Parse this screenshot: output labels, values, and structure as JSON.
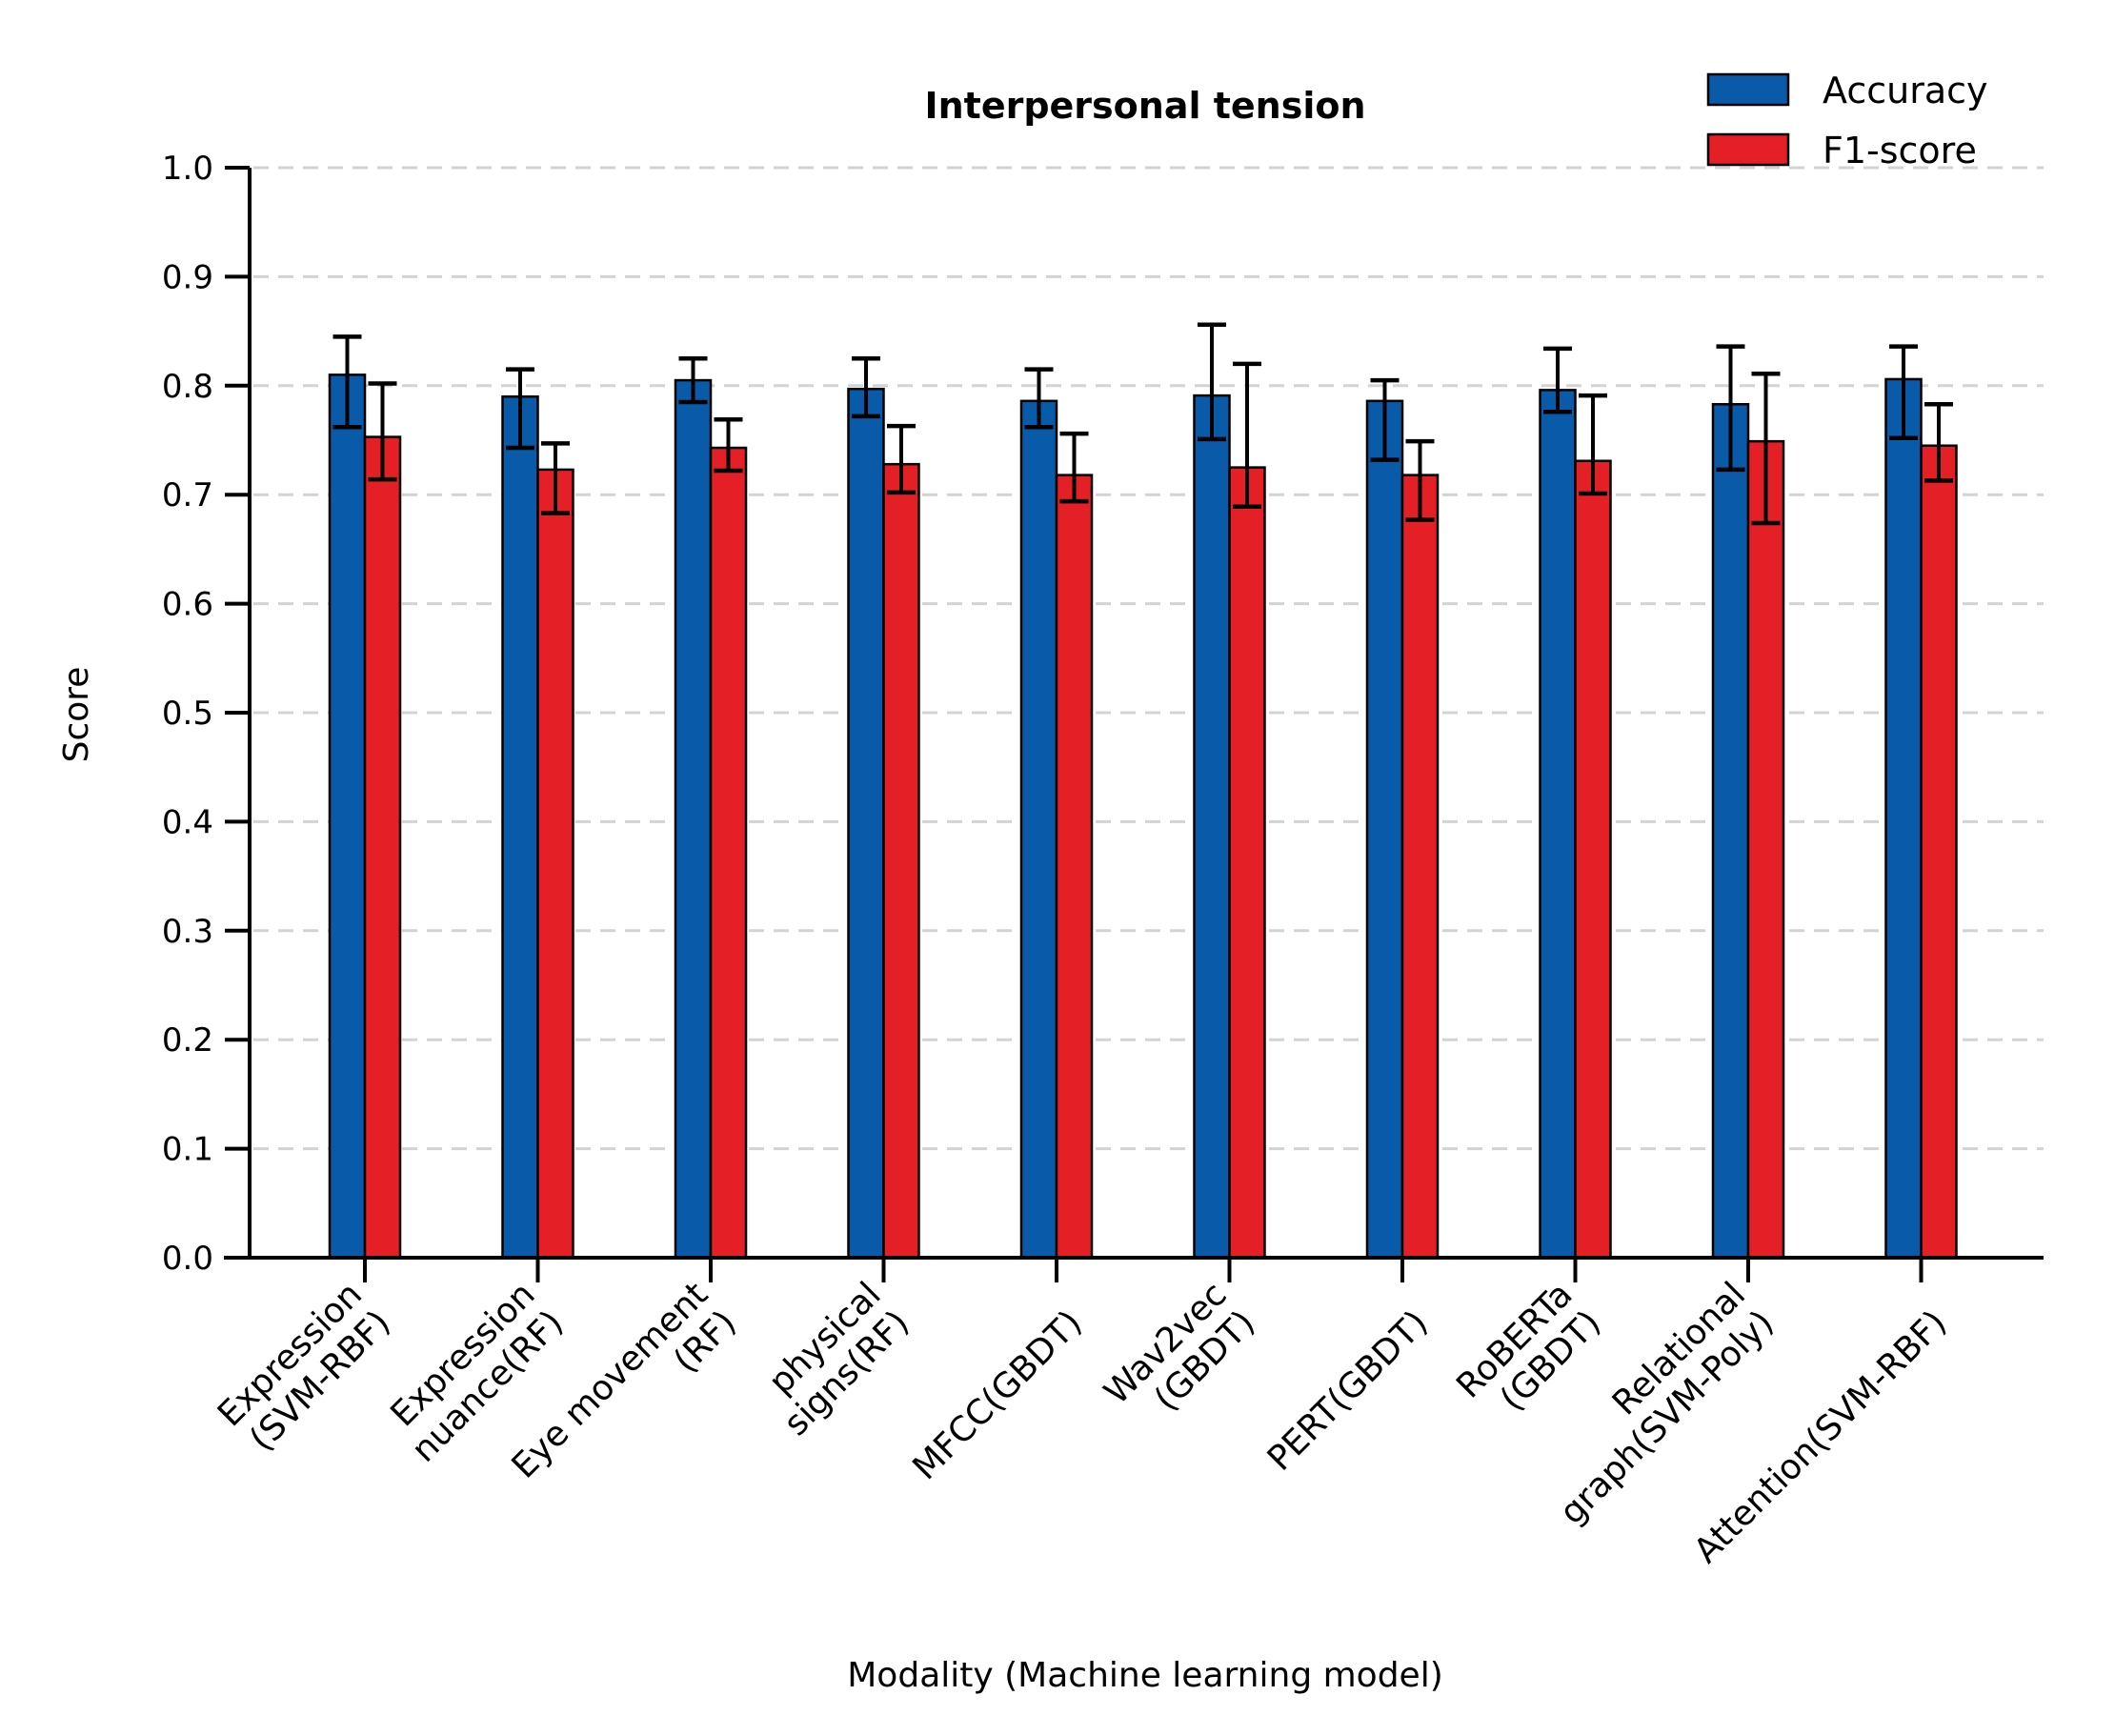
{
  "chart_data": {
    "type": "bar",
    "title": "Interpersonal tension",
    "xlabel": "Modality (Machine learning model)",
    "ylabel": "Score",
    "ylim": [
      0,
      1.0
    ],
    "yticks": [
      "0.0",
      "0.1",
      "0.2",
      "0.3",
      "0.4",
      "0.5",
      "0.6",
      "0.7",
      "0.8",
      "0.9",
      "1.0"
    ],
    "grid": "horizontal dashed",
    "legend_position": "top-right",
    "categories": [
      [
        "Expression",
        "(SVM-RBF)"
      ],
      [
        "Expression",
        "nuance(RF)"
      ],
      [
        "Eye movement",
        "(RF)"
      ],
      [
        "physical",
        "signs(RF)"
      ],
      [
        "MFCC(GBDT)"
      ],
      [
        "Wav2vec",
        "(GBDT)"
      ],
      [
        "PERT(GBDT)"
      ],
      [
        "RoBERTa",
        "(GBDT)"
      ],
      [
        "Relational",
        "graph(SVM-Poly)"
      ],
      [
        "Attention(SVM-RBF)"
      ]
    ],
    "series": [
      {
        "name": "Accuracy",
        "color": "#0a5aaa",
        "values": [
          0.81,
          0.79,
          0.805,
          0.797,
          0.786,
          0.791,
          0.786,
          0.796,
          0.783,
          0.806
        ],
        "err_low": [
          0.762,
          0.743,
          0.785,
          0.772,
          0.762,
          0.751,
          0.732,
          0.776,
          0.723,
          0.752
        ],
        "err_high": [
          0.845,
          0.815,
          0.825,
          0.825,
          0.815,
          0.856,
          0.805,
          0.834,
          0.836,
          0.836
        ]
      },
      {
        "name": "F1-score",
        "color": "#e41f26",
        "values": [
          0.753,
          0.723,
          0.743,
          0.728,
          0.718,
          0.725,
          0.718,
          0.731,
          0.749,
          0.745
        ],
        "err_low": [
          0.714,
          0.683,
          0.722,
          0.702,
          0.694,
          0.689,
          0.677,
          0.701,
          0.674,
          0.713
        ],
        "err_high": [
          0.802,
          0.747,
          0.769,
          0.763,
          0.756,
          0.82,
          0.749,
          0.791,
          0.811,
          0.783
        ]
      }
    ]
  }
}
